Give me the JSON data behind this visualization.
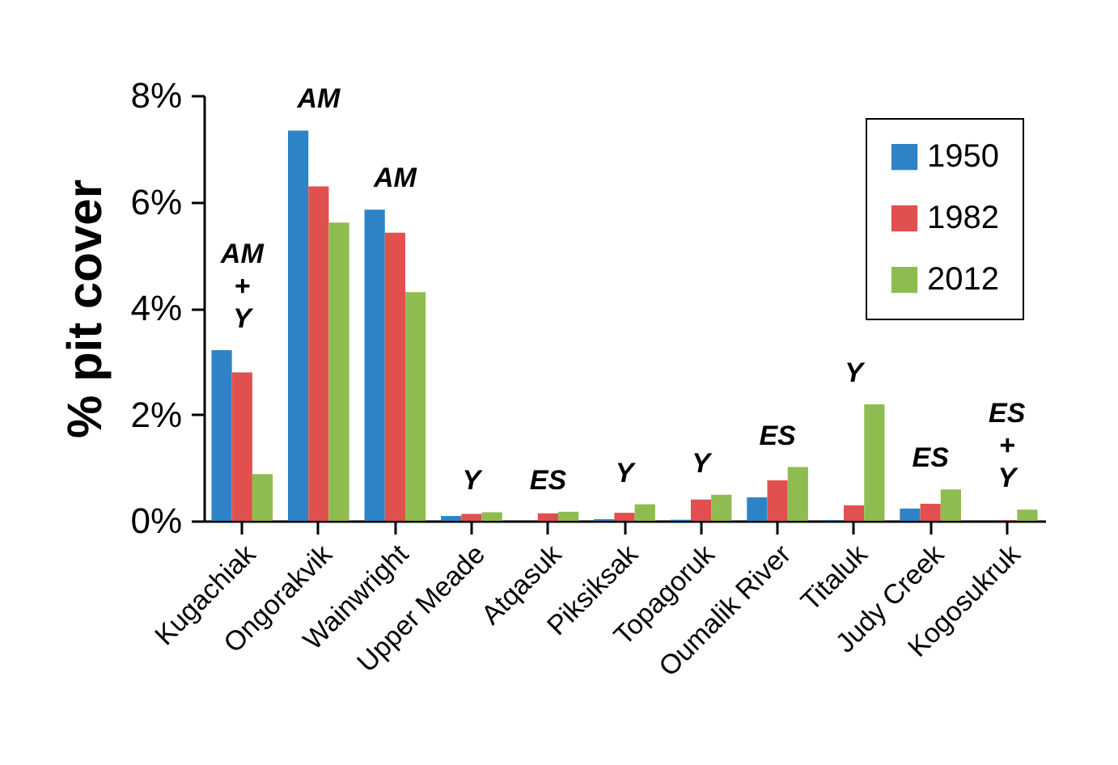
{
  "chart_data": {
    "type": "bar",
    "ylabel": "% pit cover",
    "categories": [
      "Kugachiak",
      "Ongorakvik",
      "Wainwright",
      "Upper Meade",
      "Atqasuk",
      "Piksiksak",
      "Topagoruk",
      "Oumalik River",
      "Titaluk",
      "Judy Creek",
      "Kogosukruk"
    ],
    "series": [
      {
        "name": "1950",
        "color": "#2e83c6",
        "values": [
          3.21,
          7.34,
          5.85,
          0.09,
          0,
          0.03,
          0.02,
          0.44,
          0.01,
          0.23,
          0
        ]
      },
      {
        "name": "1982",
        "color": "#e0504f",
        "values": [
          2.79,
          6.29,
          5.42,
          0.13,
          0.14,
          0.15,
          0.4,
          0.76,
          0.29,
          0.32,
          0.01
        ]
      },
      {
        "name": "2012",
        "color": "#8fbc51",
        "values": [
          0.88,
          5.61,
          4.3,
          0.16,
          0.17,
          0.31,
          0.49,
          1.01,
          2.19,
          0.59,
          0.21
        ]
      }
    ],
    "ylim": [
      0,
      8
    ],
    "yticks": [
      {
        "value": 0,
        "label": "0%"
      },
      {
        "value": 2,
        "label": "2%"
      },
      {
        "value": 4,
        "label": "4%"
      },
      {
        "value": 6,
        "label": "6%"
      },
      {
        "value": 8,
        "label": "8%"
      }
    ],
    "annotations": [
      "AM\n+\nY",
      "AM",
      "AM",
      "Y",
      "ES",
      "Y",
      "Y",
      "ES",
      "Y",
      "ES",
      "ES\n+\nY"
    ],
    "legend": "top right",
    "grid": false
  }
}
